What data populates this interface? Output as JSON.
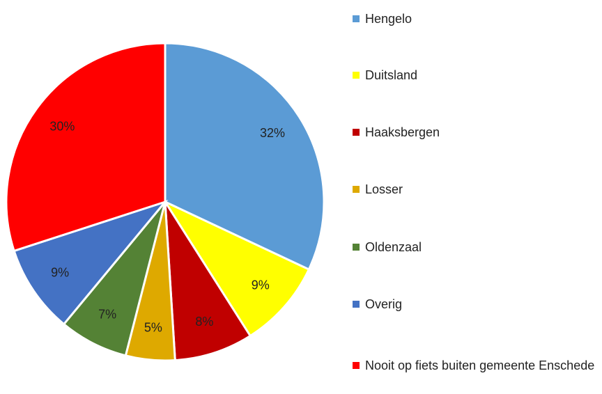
{
  "chart_data": {
    "type": "pie",
    "categories": [
      "Hengelo",
      "Duitsland",
      "Haaksbergen",
      "Losser",
      "Oldenzaal",
      "Overig",
      "Nooit op fiets buiten gemeente Enschede"
    ],
    "values": [
      32,
      9,
      8,
      5,
      7,
      9,
      30
    ],
    "value_labels": [
      "32%",
      "9%",
      "8%",
      "5%",
      "7%",
      "9%",
      "30%"
    ],
    "colors": [
      "#5b9bd5",
      "#ffff00",
      "#c00000",
      "#dea900",
      "#548235",
      "#4472c4",
      "#ff0000"
    ],
    "legend": "right"
  }
}
